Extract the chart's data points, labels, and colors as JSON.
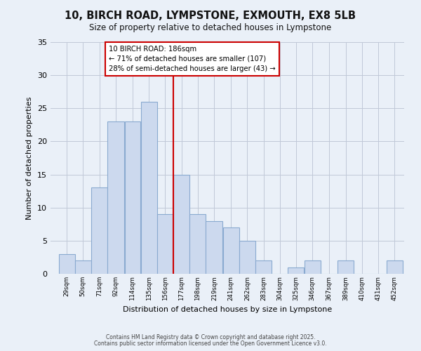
{
  "title": "10, BIRCH ROAD, LYMPSTONE, EXMOUTH, EX8 5LB",
  "subtitle": "Size of property relative to detached houses in Lympstone",
  "xlabel": "Distribution of detached houses by size in Lympstone",
  "ylabel": "Number of detached properties",
  "bin_labels": [
    "29sqm",
    "50sqm",
    "71sqm",
    "92sqm",
    "114sqm",
    "135sqm",
    "156sqm",
    "177sqm",
    "198sqm",
    "219sqm",
    "241sqm",
    "262sqm",
    "283sqm",
    "304sqm",
    "325sqm",
    "346sqm",
    "367sqm",
    "389sqm",
    "410sqm",
    "431sqm",
    "452sqm"
  ],
  "bin_edges": [
    29,
    50,
    71,
    92,
    114,
    135,
    156,
    177,
    198,
    219,
    241,
    262,
    283,
    304,
    325,
    346,
    367,
    389,
    410,
    431,
    452,
    473
  ],
  "counts": [
    3,
    2,
    13,
    23,
    23,
    26,
    9,
    15,
    9,
    8,
    7,
    5,
    2,
    0,
    1,
    2,
    0,
    2,
    0,
    0,
    2
  ],
  "bar_color": "#ccd9ee",
  "bar_edge_color": "#8aaad0",
  "bar_linewidth": 0.8,
  "vline_x": 177,
  "vline_color": "#cc0000",
  "annotation_title": "10 BIRCH ROAD: 186sqm",
  "annotation_line1": "← 71% of detached houses are smaller (107)",
  "annotation_line2": "28% of semi-detached houses are larger (43) →",
  "annotation_box_color": "#ffffff",
  "annotation_box_edge_color": "#cc0000",
  "ylim": [
    0,
    35
  ],
  "yticks": [
    0,
    5,
    10,
    15,
    20,
    25,
    30,
    35
  ],
  "grid_color": "#c0c8d8",
  "bg_color": "#eaf0f8",
  "footer1": "Contains HM Land Registry data © Crown copyright and database right 2025.",
  "footer2": "Contains public sector information licensed under the Open Government Licence v3.0."
}
